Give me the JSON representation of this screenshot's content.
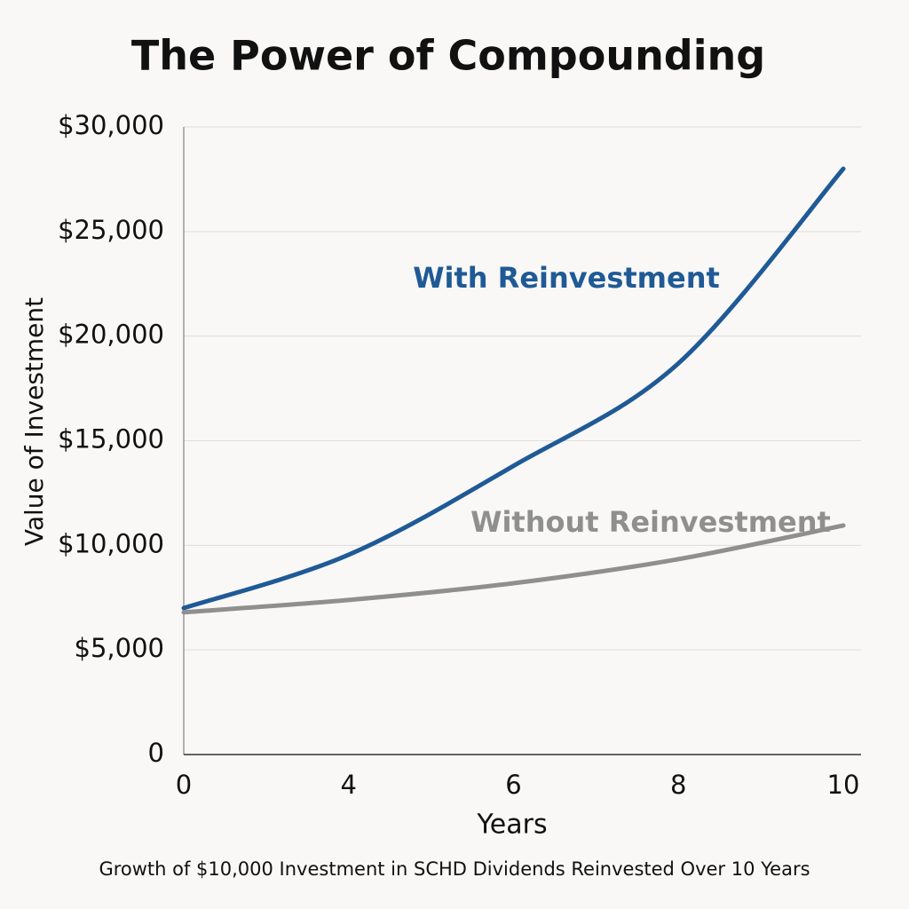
{
  "chart_data": {
    "type": "line",
    "title": "The Power of Compounding",
    "subtitle": "Growth of $10,000 Investment in SCHD Dividends Reinvested Over 10 Years",
    "x_label": "Years",
    "y_label": "Value of Investment",
    "categories": [
      "0",
      "4",
      "6",
      "8",
      "10"
    ],
    "series": [
      {
        "name": "With Reinvestment",
        "color": "#1f5a96",
        "values": [
          7000,
          9550,
          13800,
          18700,
          28000
        ]
      },
      {
        "name": "Without Reinvestment",
        "color": "#8f8f8f",
        "values": [
          6800,
          7390,
          8190,
          9340,
          10950
        ]
      }
    ],
    "ylim": [
      0,
      30000
    ],
    "yticks": [
      0,
      {
        "value": 5000,
        "label": "$5,000"
      },
      {
        "value": 10000,
        "label": "$10,000"
      },
      {
        "value": 15000,
        "label": "$15,000"
      },
      {
        "value": 20000,
        "label": "$20,000"
      },
      {
        "value": 25000,
        "label": "$25,000"
      },
      {
        "value": 30000,
        "label": "$30,000"
      }
    ],
    "grid": true
  }
}
